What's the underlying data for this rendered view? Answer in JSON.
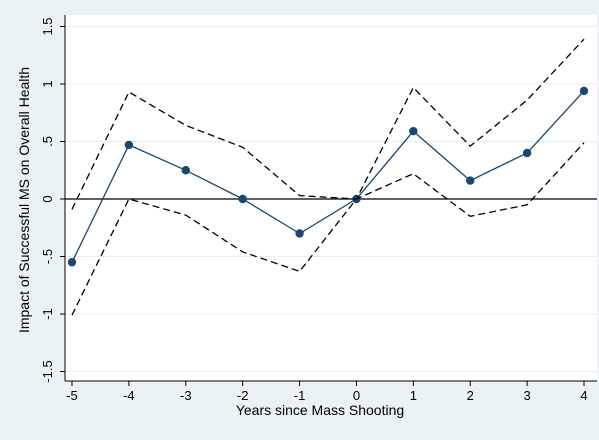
{
  "chart_data": {
    "type": "line",
    "title": "",
    "xlabel": "Years since Mass Shooting",
    "ylabel": "Impact of Successful MS on Overall Health",
    "x": [
      -5,
      -4,
      -3,
      -2,
      -1,
      0,
      1,
      2,
      3,
      4
    ],
    "xlim": [
      -5,
      4
    ],
    "ylim": [
      -1.5,
      1.5
    ],
    "xticks": [
      "-5",
      "-4",
      "-3",
      "-2",
      "-1",
      "0",
      "1",
      "2",
      "3",
      "4"
    ],
    "yticks": [
      "-1.5",
      "-1",
      "-.5",
      "0",
      ".5",
      "1",
      "1.5"
    ],
    "ytick_values": [
      -1.5,
      -1,
      -0.5,
      0,
      0.5,
      1,
      1.5
    ],
    "grid": true,
    "series": [
      {
        "values": [
          -0.55,
          0.47,
          0.25,
          0.0,
          -0.3,
          0.0,
          0.59,
          0.16,
          0.4,
          0.94
        ],
        "style": "solid-markers",
        "color": "#1a476f"
      },
      {
        "values": [
          -0.09,
          0.93,
          0.64,
          0.45,
          0.03,
          0.0,
          0.97,
          0.46,
          0.86,
          1.39
        ],
        "style": "dashed",
        "color": "#000000"
      },
      {
        "values": [
          -1.01,
          0.0,
          -0.14,
          -0.46,
          -0.63,
          0.0,
          0.22,
          -0.15,
          -0.05,
          0.49
        ],
        "style": "dashed",
        "color": "#000000"
      }
    ],
    "reference_line": {
      "y": 0,
      "color": "#000000"
    }
  }
}
